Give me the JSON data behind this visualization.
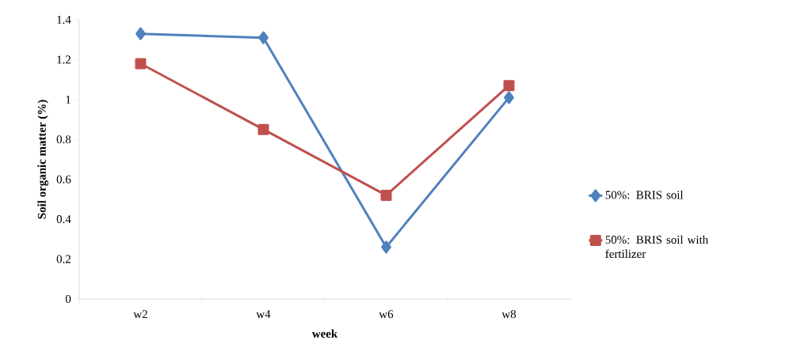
{
  "chart_data": {
    "type": "line",
    "xlabel": "week",
    "ylabel": "Soil organic matter (%)",
    "categories": [
      "w2",
      "w4",
      "w6",
      "w8"
    ],
    "series": [
      {
        "name": "50%: BRIS soil",
        "color": "#4f81bd",
        "marker": "diamond",
        "values": [
          1.33,
          1.31,
          0.26,
          1.01
        ]
      },
      {
        "name": "50%: BRIS soil with fertilizer",
        "color": "#c0504d",
        "marker": "square",
        "values": [
          1.18,
          0.85,
          0.52,
          1.07
        ]
      }
    ],
    "ylim": [
      0,
      1.4
    ],
    "yticks": [
      0,
      0.2,
      0.4,
      0.6,
      0.8,
      1,
      1.2,
      1.4
    ],
    "grid": false,
    "legend": "right"
  }
}
